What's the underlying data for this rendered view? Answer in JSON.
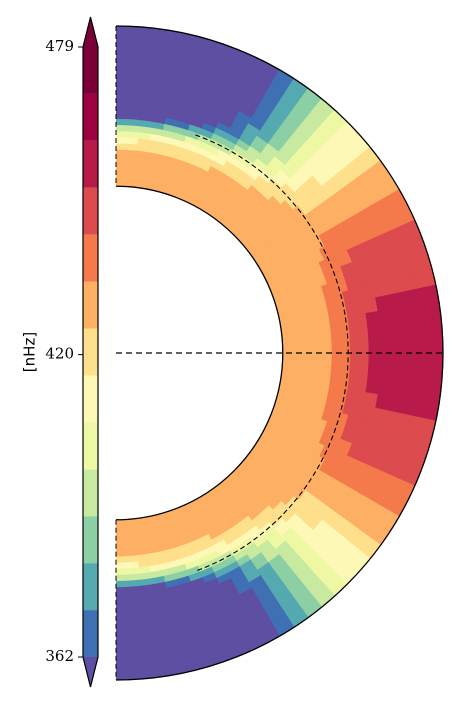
{
  "chart_data": {
    "type": "heatmap",
    "title": "",
    "colorbar": {
      "label": "[nHz]",
      "ticks": [
        "479",
        "420",
        "362"
      ],
      "min": 362,
      "max": 479,
      "extend": "both",
      "cmap": "Spectral_r",
      "levels": [
        362,
        371,
        380,
        389,
        398,
        407,
        416,
        425,
        434,
        443,
        452,
        461,
        470,
        479
      ],
      "colors": [
        "#5e4fa2",
        "#3f70b4",
        "#55a9b0",
        "#8dcfa4",
        "#c7e9a0",
        "#eef8a4",
        "#fdf8b6",
        "#fedf8c",
        "#fdaf63",
        "#f47a4c",
        "#dc4b4e",
        "#b81a4a",
        "#9e0142",
        "#7a0138"
      ]
    },
    "domain": {
      "geometry": "meridional half-annulus",
      "outer_radius": 1.0,
      "inner_radius": 0.51,
      "tachocline_radius": 0.71,
      "equator_line": "dashed"
    },
    "rotation_profile": {
      "equator_rate": 455,
      "pole_rate": 350,
      "interior_rate": 430,
      "note_axis": "latitude from equator"
    }
  }
}
